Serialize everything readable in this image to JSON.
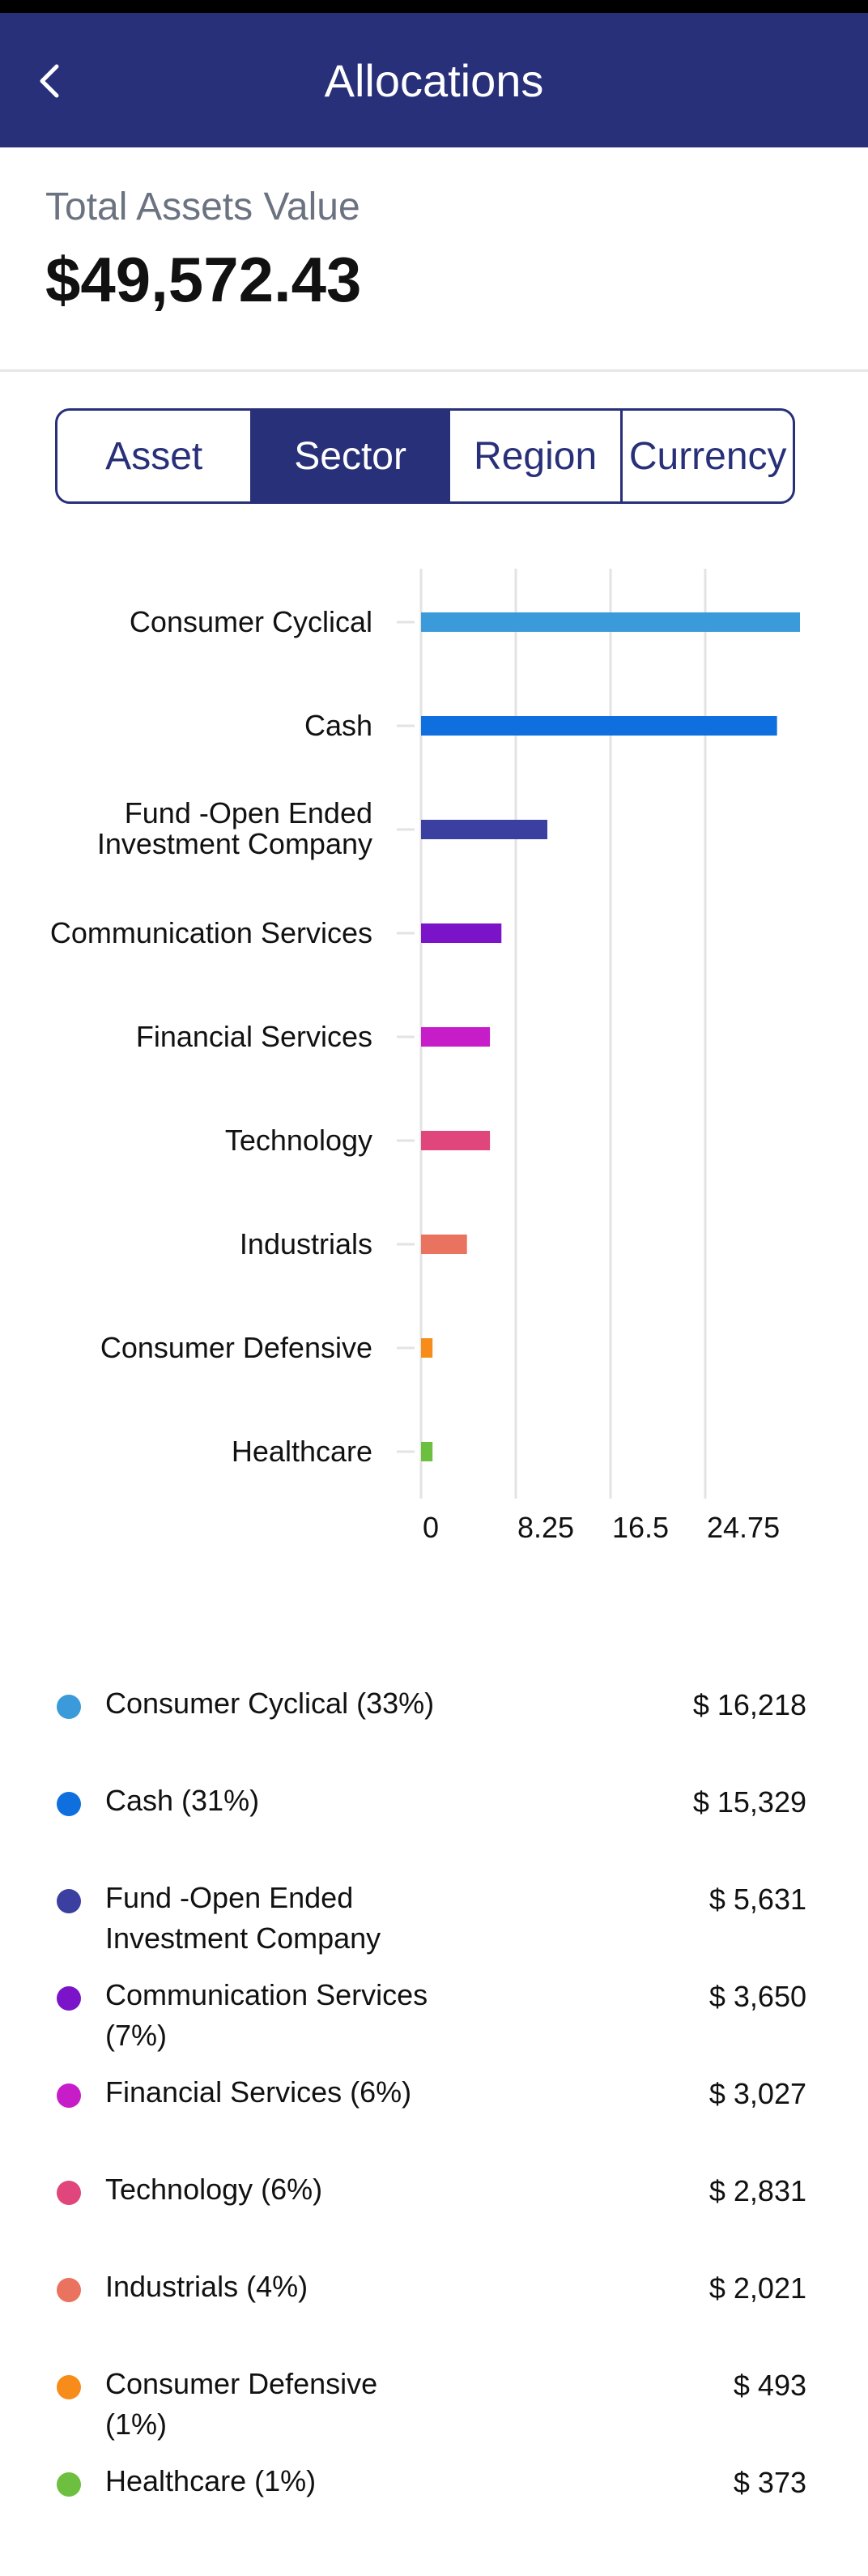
{
  "header": {
    "title": "Allocations",
    "back_icon": "chevron-left-icon"
  },
  "summary": {
    "label": "Total Assets Value",
    "value": "$49,572.43"
  },
  "tabs": [
    {
      "label": "Asset",
      "active": false
    },
    {
      "label": "Sector",
      "active": true
    },
    {
      "label": "Region",
      "active": false
    },
    {
      "label": "Currency",
      "active": false
    }
  ],
  "chart_data": {
    "type": "bar",
    "orientation": "horizontal",
    "categories": [
      "Consumer Cyclical",
      "Cash",
      "Fund -Open Ended Investment Company",
      "Communication Services",
      "Financial Services",
      "Technology",
      "Industrials",
      "Consumer Defensive",
      "Healthcare"
    ],
    "values": [
      33,
      31,
      11,
      7,
      6,
      6,
      4,
      1,
      1
    ],
    "colors": [
      "#3b9ad9",
      "#0f6fde",
      "#3a3fa0",
      "#7b14c9",
      "#c61dc9",
      "#e0457b",
      "#ea7360",
      "#f78c1a",
      "#6cbf3f"
    ],
    "x_ticks": [
      "0",
      "8.25",
      "16.5",
      "24.75"
    ],
    "xlim": [
      0,
      33
    ],
    "grid": true
  },
  "legend": [
    {
      "label": "Consumer Cyclical (33%)",
      "value": "$ 16,218",
      "color": "#3b9ad9"
    },
    {
      "label": "Cash (31%)",
      "value": "$ 15,329",
      "color": "#0f6fde"
    },
    {
      "label": "Fund -Open Ended Investment Company (11%)",
      "value": "$ 5,631",
      "color": "#3a3fa0"
    },
    {
      "label": "Communication Services (7%)",
      "value": "$ 3,650",
      "color": "#7b14c9"
    },
    {
      "label": "Financial Services (6%)",
      "value": "$ 3,027",
      "color": "#c61dc9"
    },
    {
      "label": "Technology (6%)",
      "value": "$ 2,831",
      "color": "#e0457b"
    },
    {
      "label": "Industrials (4%)",
      "value": "$ 2,021",
      "color": "#ea7360"
    },
    {
      "label": "Consumer Defensive (1%)",
      "value": "$ 493",
      "color": "#f78c1a"
    },
    {
      "label": "Healthcare (1%)",
      "value": "$ 373",
      "color": "#6cbf3f"
    }
  ]
}
